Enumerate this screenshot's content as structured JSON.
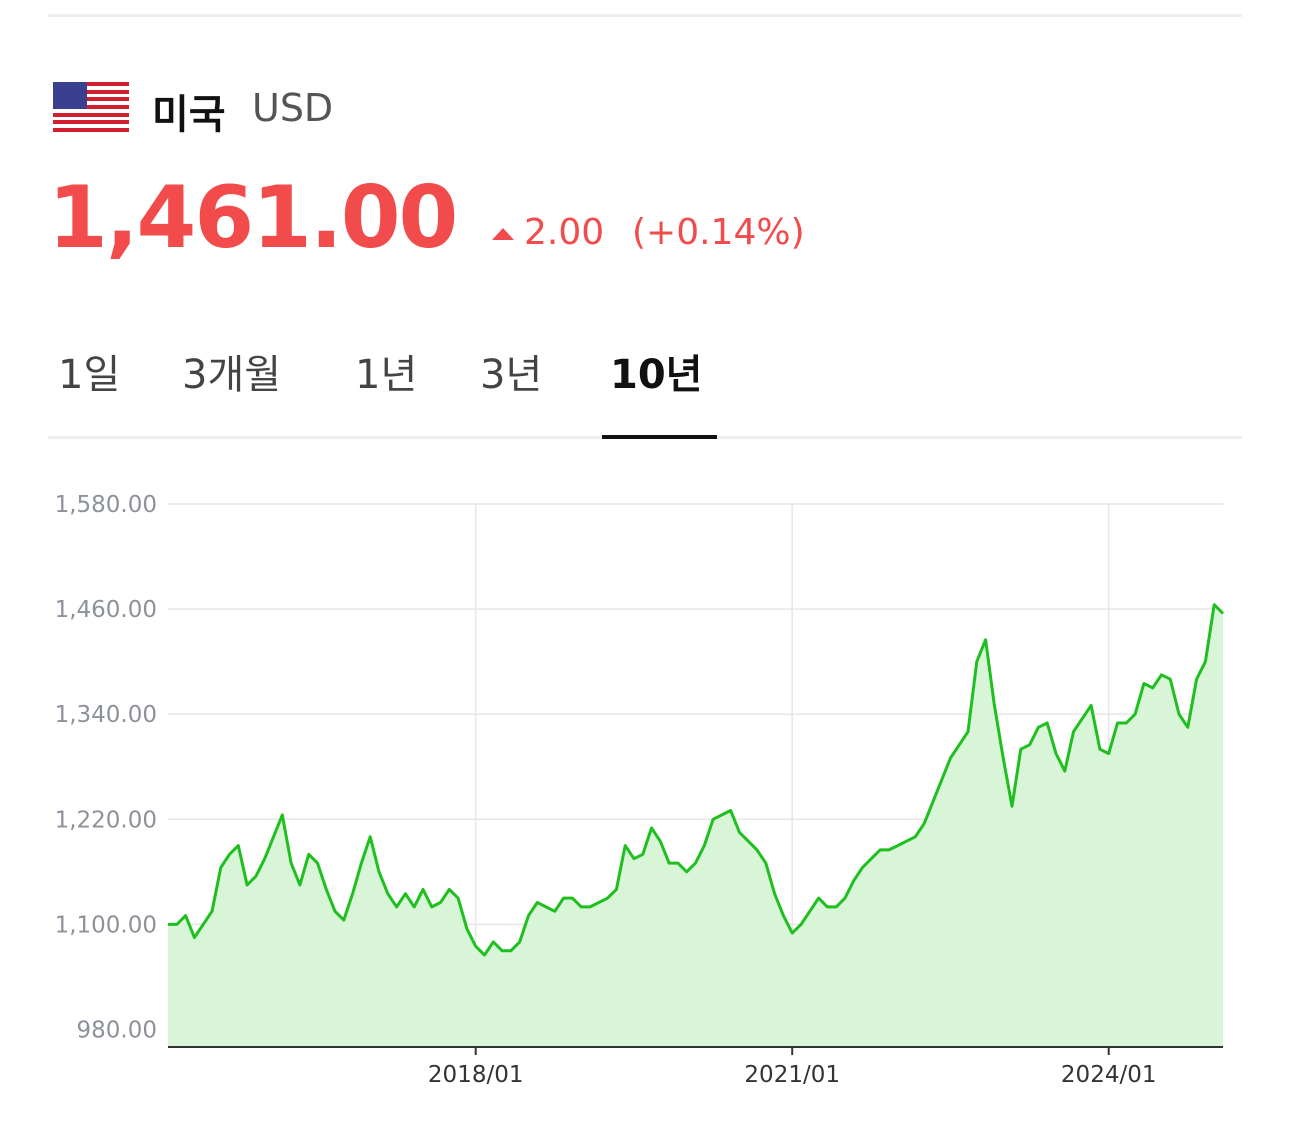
{
  "header": {
    "country": "미국",
    "currency": "USD"
  },
  "quote": {
    "price": "1,461.00",
    "change": "2.00",
    "change_percent": "(+0.14%)"
  },
  "tabs": {
    "items": [
      "1일",
      "3개월",
      "1년",
      "3년",
      "10년"
    ],
    "active": 4
  },
  "chart_data": {
    "type": "area",
    "x": [
      "2015/02",
      "2015/03",
      "2015/04",
      "2015/05",
      "2015/06",
      "2015/07",
      "2015/08",
      "2015/09",
      "2015/10",
      "2015/11",
      "2015/12",
      "2016/01",
      "2016/02",
      "2016/03",
      "2016/04",
      "2016/05",
      "2016/06",
      "2016/07",
      "2016/08",
      "2016/09",
      "2016/10",
      "2016/11",
      "2016/12",
      "2017/01",
      "2017/02",
      "2017/03",
      "2017/04",
      "2017/05",
      "2017/06",
      "2017/07",
      "2017/08",
      "2017/09",
      "2017/10",
      "2017/11",
      "2017/12",
      "2018/01",
      "2018/02",
      "2018/03",
      "2018/04",
      "2018/05",
      "2018/06",
      "2018/07",
      "2018/08",
      "2018/09",
      "2018/10",
      "2018/11",
      "2018/12",
      "2019/01",
      "2019/02",
      "2019/03",
      "2019/04",
      "2019/05",
      "2019/06",
      "2019/07",
      "2019/08",
      "2019/09",
      "2019/10",
      "2019/11",
      "2019/12",
      "2020/01",
      "2020/02",
      "2020/03",
      "2020/04",
      "2020/05",
      "2020/06",
      "2020/07",
      "2020/08",
      "2020/09",
      "2020/10",
      "2020/11",
      "2020/12",
      "2021/01",
      "2021/02",
      "2021/03",
      "2021/04",
      "2021/05",
      "2021/06",
      "2021/07",
      "2021/08",
      "2021/09",
      "2021/10",
      "2021/11",
      "2021/12",
      "2022/01",
      "2022/02",
      "2022/03",
      "2022/04",
      "2022/05",
      "2022/06",
      "2022/07",
      "2022/08",
      "2022/09",
      "2022/10",
      "2022/11",
      "2022/12",
      "2023/01",
      "2023/02",
      "2023/03",
      "2023/04",
      "2023/05",
      "2023/06",
      "2023/07",
      "2023/08",
      "2023/09",
      "2023/10",
      "2023/11",
      "2023/12",
      "2024/01",
      "2024/02",
      "2024/03",
      "2024/04",
      "2024/05",
      "2024/06",
      "2024/07",
      "2024/08",
      "2024/09",
      "2024/10",
      "2024/11",
      "2024/12",
      "2025/01",
      "2025/02"
    ],
    "values": [
      1100,
      1100,
      1110,
      1085,
      1100,
      1115,
      1165,
      1180,
      1190,
      1145,
      1155,
      1175,
      1200,
      1225,
      1170,
      1145,
      1180,
      1170,
      1140,
      1115,
      1105,
      1135,
      1170,
      1200,
      1160,
      1135,
      1120,
      1135,
      1120,
      1140,
      1120,
      1125,
      1140,
      1130,
      1095,
      1075,
      1065,
      1080,
      1070,
      1070,
      1080,
      1110,
      1125,
      1120,
      1115,
      1130,
      1130,
      1120,
      1120,
      1125,
      1130,
      1140,
      1190,
      1175,
      1180,
      1210,
      1195,
      1170,
      1170,
      1160,
      1170,
      1190,
      1220,
      1225,
      1230,
      1205,
      1195,
      1185,
      1170,
      1135,
      1110,
      1090,
      1100,
      1115,
      1130,
      1120,
      1120,
      1130,
      1150,
      1165,
      1175,
      1185,
      1185,
      1190,
      1195,
      1200,
      1215,
      1240,
      1265,
      1290,
      1305,
      1320,
      1400,
      1425,
      1350,
      1290,
      1235,
      1300,
      1305,
      1325,
      1330,
      1295,
      1275,
      1320,
      1335,
      1350,
      1300,
      1295,
      1330,
      1330,
      1340,
      1375,
      1370,
      1385,
      1380,
      1340,
      1325,
      1380,
      1400,
      1465,
      1455
    ],
    "color": "#1fbf1f",
    "area_color": "#d8f5d8",
    "xlim": [
      "2015/02",
      "2025/02"
    ],
    "xticks": [
      "2018/01",
      "2021/01",
      "2024/01"
    ],
    "ylim": [
      960,
      1580
    ],
    "yticks": [
      {
        "value": 980,
        "label": "980.00"
      },
      {
        "value": 1100,
        "label": "1,100.00"
      },
      {
        "value": 1220,
        "label": "1,220.00"
      },
      {
        "value": 1340,
        "label": "1,340.00"
      },
      {
        "value": 1460,
        "label": "1,460.00"
      },
      {
        "value": 1580,
        "label": "1,580.00"
      }
    ],
    "grid": true
  }
}
